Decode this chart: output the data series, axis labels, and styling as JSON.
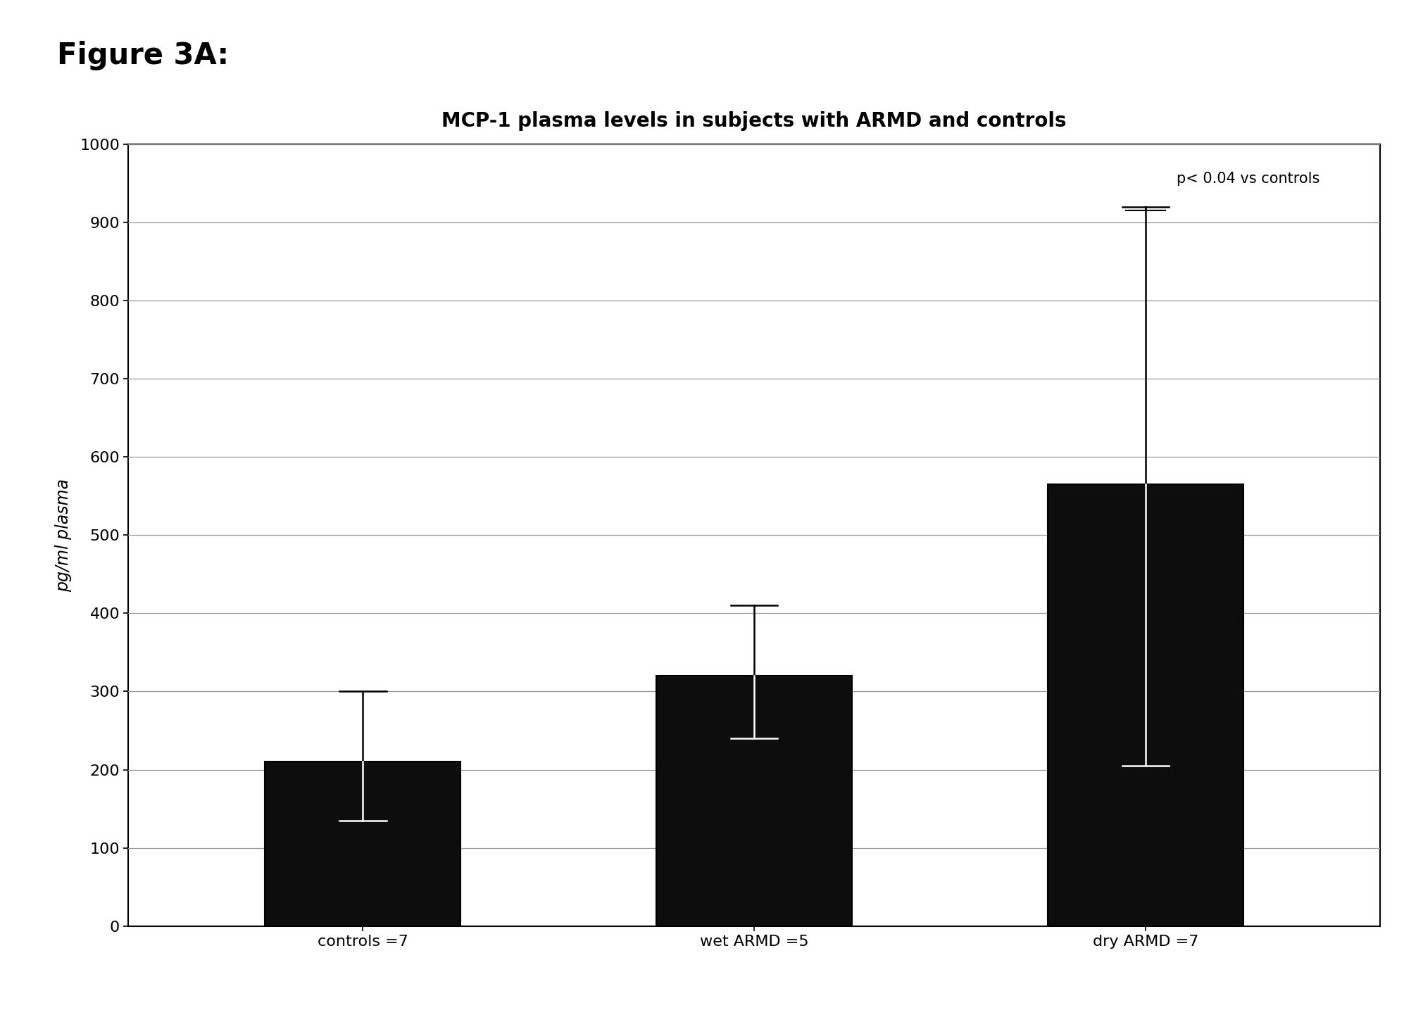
{
  "title": "MCP-1 plasma levels in subjects with ARMD and controls",
  "figure_label": "Figure 3A:",
  "categories": [
    "controls =7",
    "wet ARMD =5",
    "dry ARMD =7"
  ],
  "values": [
    210,
    320,
    565
  ],
  "errors_upper": [
    90,
    90,
    355
  ],
  "errors_lower": [
    75,
    80,
    360
  ],
  "bar_color": "#0d0d0d",
  "bar_edge_color": "#000000",
  "ylabel": "pg/ml plasma",
  "ylim": [
    0,
    1000
  ],
  "yticks": [
    0,
    100,
    200,
    300,
    400,
    500,
    600,
    700,
    800,
    900,
    1000
  ],
  "annotation_text": "p< 0.04 vs controls",
  "background_color": "#ffffff",
  "plot_bg_color": "#ffffff",
  "title_fontsize": 20,
  "label_fontsize": 17,
  "tick_fontsize": 16,
  "figure_label_fontsize": 30,
  "annotation_fontsize": 15,
  "grid_color": "#999999",
  "bar_width": 0.5
}
